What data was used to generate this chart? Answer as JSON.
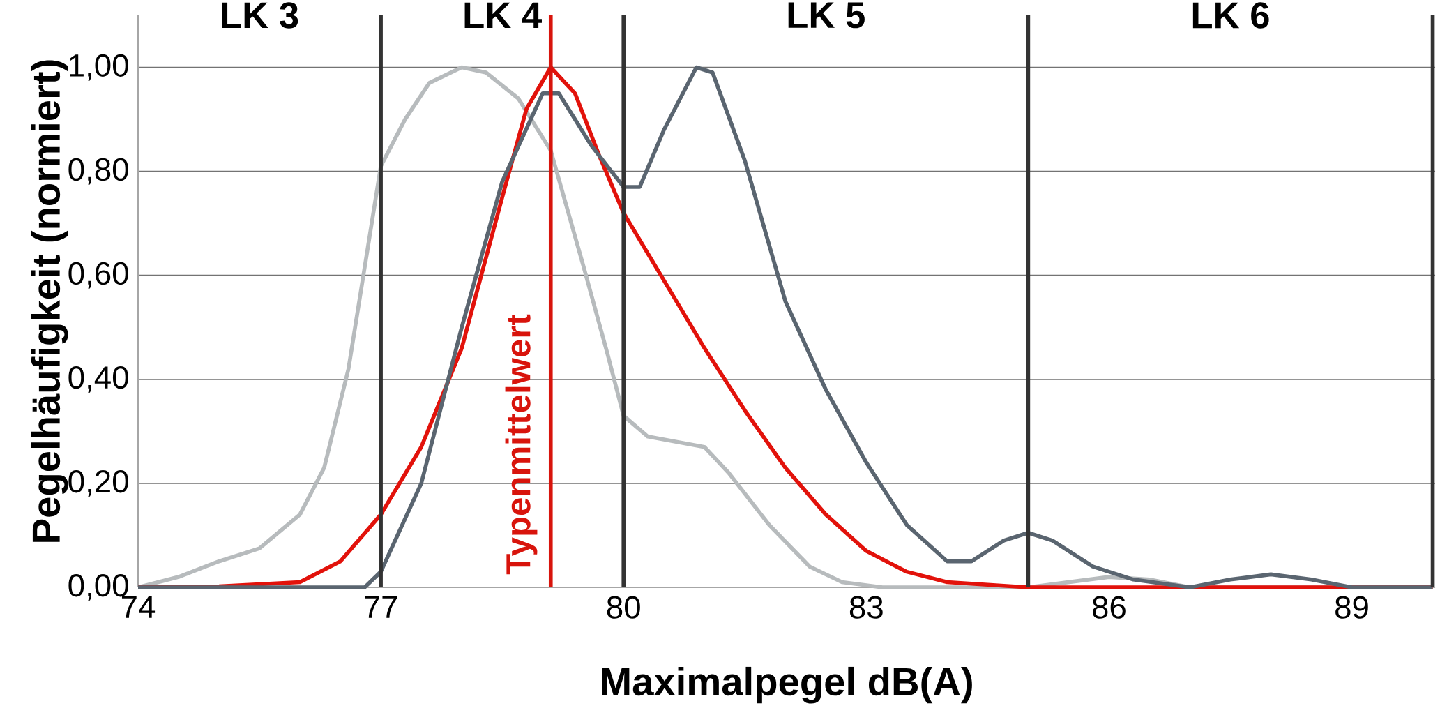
{
  "chart_data": {
    "type": "line",
    "xlabel": "Maximalpegel dB(A)",
    "ylabel": "Pegelhäufigkeit (normiert)",
    "xlim": [
      74,
      90.03
    ],
    "xticks": [
      74,
      77,
      80,
      83,
      86,
      89
    ],
    "ylim": [
      0,
      1.1
    ],
    "yticks": [
      {
        "value": 0,
        "label": "0,00"
      },
      {
        "value": 0.2,
        "label": "0,20"
      },
      {
        "value": 0.4,
        "label": "0,40"
      },
      {
        "value": 0.6,
        "label": "0,60"
      },
      {
        "value": 0.8,
        "label": "0,80"
      },
      {
        "value": 1.0,
        "label": "1,00"
      }
    ],
    "grid": "y",
    "marker": "none",
    "line_style": "solid",
    "series": [
      {
        "color": "#b7bbbd",
        "x": [
          74,
          74.5,
          75,
          75.5,
          76,
          76.3,
          76.6,
          77,
          77.3,
          77.6,
          78,
          78.3,
          78.7,
          79.1,
          79.5,
          79.8,
          80,
          80.3,
          81,
          81.3,
          81.8,
          82.3,
          82.7,
          83.2,
          84,
          85,
          85.5,
          86,
          86.5,
          87,
          88,
          90
        ],
        "values": [
          0,
          0.02,
          0.05,
          0.075,
          0.14,
          0.23,
          0.42,
          0.81,
          0.9,
          0.97,
          1.0,
          0.99,
          0.94,
          0.84,
          0.62,
          0.45,
          0.33,
          0.29,
          0.27,
          0.22,
          0.12,
          0.04,
          0.01,
          0,
          0,
          0,
          0.01,
          0.02,
          0.015,
          0,
          0,
          0
        ]
      },
      {
        "color": "#e2120b",
        "x": [
          74,
          75,
          76,
          76.5,
          77,
          77.5,
          78,
          78.5,
          78.8,
          79.1,
          79.4,
          79.7,
          80,
          80.5,
          81,
          81.5,
          82,
          82.5,
          83,
          83.5,
          84,
          85,
          90
        ],
        "values": [
          0,
          0.002,
          0.01,
          0.05,
          0.14,
          0.27,
          0.46,
          0.75,
          0.92,
          1.0,
          0.95,
          0.83,
          0.72,
          0.59,
          0.46,
          0.34,
          0.23,
          0.14,
          0.07,
          0.03,
          0.01,
          0,
          0
        ]
      },
      {
        "color": "#5a6570",
        "x": [
          74,
          76,
          76.8,
          77,
          77.5,
          78,
          78.5,
          79,
          79.2,
          79.6,
          80,
          80.2,
          80.5,
          80.9,
          81.1,
          81.5,
          82,
          82.5,
          83,
          83.5,
          84,
          84.3,
          84.7,
          85,
          85.3,
          85.8,
          86.3,
          87,
          87.5,
          88,
          88.5,
          89,
          90
        ],
        "values": [
          0,
          0,
          0,
          0.03,
          0.2,
          0.5,
          0.78,
          0.95,
          0.95,
          0.85,
          0.77,
          0.77,
          0.88,
          1.0,
          0.99,
          0.82,
          0.55,
          0.38,
          0.24,
          0.12,
          0.05,
          0.05,
          0.09,
          0.105,
          0.09,
          0.04,
          0.015,
          0,
          0.015,
          0.025,
          0.015,
          0,
          0
        ]
      }
    ],
    "ref_lines": [
      {
        "axis": "x",
        "value": 77,
        "color": "#333333"
      },
      {
        "axis": "x",
        "value": 80,
        "color": "#333333"
      },
      {
        "axis": "x",
        "value": 85,
        "color": "#333333"
      },
      {
        "axis": "x",
        "value": 90,
        "color": "#333333"
      },
      {
        "axis": "x",
        "value": 79.1,
        "color": "#d8140c",
        "label": "Typenmittelwert"
      }
    ],
    "annotations": [
      "LK 3",
      "LK 4",
      "LK 5",
      "LK 6"
    ]
  }
}
